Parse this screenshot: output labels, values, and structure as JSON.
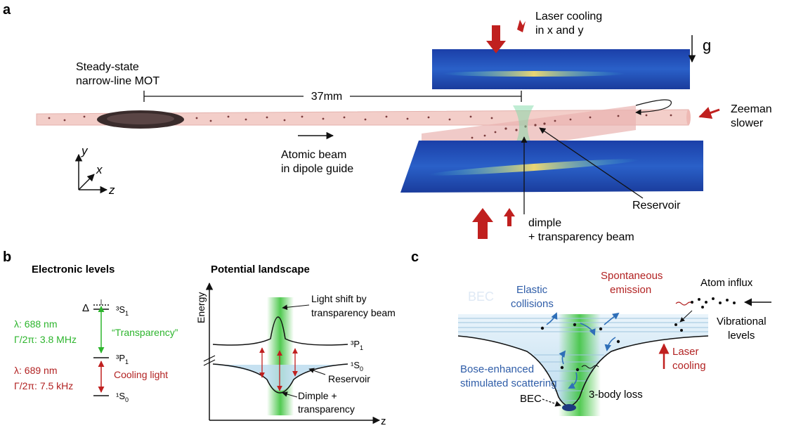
{
  "panel_a": {
    "label": "a",
    "mot_line1": "Steady-state",
    "mot_line2": "narrow-line MOT",
    "distance": "37mm",
    "laser_cooling_line1": "Laser cooling",
    "laser_cooling_line2": "in x and y",
    "gravity": "g",
    "zeeman_line1": "Zeeman",
    "zeeman_line2": "slower",
    "atomic_beam_line1": "Atomic beam",
    "atomic_beam_line2": "in dipole guide",
    "reservoir": "Reservoir",
    "dimple_line1": "dimple",
    "dimple_line2": "+ transparency beam",
    "axis_x": "x",
    "axis_y": "y",
    "axis_z": "z"
  },
  "panel_b": {
    "label": "b",
    "levels_title": "Electronic levels",
    "landscape_title": "Potential landscape",
    "delta": "Δ",
    "level_3S1": "³S",
    "level_3S1_sub": "1",
    "level_3P1": "³P",
    "level_3P1_sub": "1",
    "level_1S0": "¹S",
    "level_1S0_sub": "0",
    "green_line1": "λ: 688 nm",
    "green_line2": "Γ/2π: 3.8 MHz",
    "transparency": "“Transparency”",
    "red_line1": "λ: 689 nm",
    "red_line2": "Γ/2π: 7.5 kHz",
    "cooling_light": "Cooling light",
    "energy_axis": "Energy",
    "z_axis": "z",
    "light_shift_line1": "Light shift by",
    "light_shift_line2": "transparency beam",
    "curve_3P1": "³P",
    "curve_3P1_sub": "1",
    "curve_1S0": "¹S",
    "curve_1S0_sub": "0",
    "reservoir": "Reservoir",
    "dimple_line1": "Dimple +",
    "dimple_line2": "transparency"
  },
  "panel_c": {
    "label": "c",
    "bec_faint": "BEC",
    "elastic_line1": "Elastic",
    "elastic_line2": "collisions",
    "spontaneous_line1": "Spontaneous",
    "spontaneous_line2": "emission",
    "atom_influx": "Atom influx",
    "vibrational_line1": "Vibrational",
    "vibrational_line2": "levels",
    "laser_cooling_line1": "Laser",
    "laser_cooling_line2": "cooling",
    "bose_line1": "Bose-enhanced",
    "bose_line2": "stimulated scattering",
    "three_body": "3-body loss",
    "bec_label": "BEC"
  },
  "colors": {
    "green": "#2db52d",
    "red": "#b22222",
    "blue": "#2f5da8",
    "beam_pink": "#f2c9c4"
  }
}
